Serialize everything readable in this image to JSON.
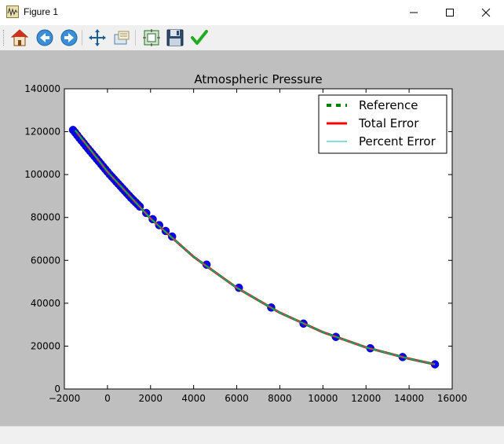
{
  "window": {
    "title": "Figure 1"
  },
  "toolbar": {
    "buttons": [
      "home-icon",
      "back-icon",
      "forward-icon",
      "pan-icon",
      "zoom-icon",
      "subplots-icon",
      "save-icon",
      "edit-icon"
    ]
  },
  "colors": {
    "figure_bg": "#bfbfbf",
    "marker": "#0000ff",
    "reference": "#008000",
    "total_error": "#ff0000",
    "percent_error": "#00bfbf"
  },
  "chart_data": {
    "type": "line",
    "title": "Atmospheric Pressure",
    "xlabel": "",
    "ylabel": "",
    "xlim": [
      -2000,
      16000
    ],
    "ylim": [
      0,
      140000
    ],
    "xticks": [
      "−2000",
      "0",
      "2000",
      "4000",
      "6000",
      "8000",
      "10000",
      "12000",
      "14000",
      "16000"
    ],
    "yticks": [
      "0",
      "20000",
      "40000",
      "60000",
      "80000",
      "100000",
      "120000",
      "140000"
    ],
    "legend_position": "top-right",
    "legend": [
      "Reference",
      "Total Error",
      "Percent Error"
    ],
    "series": [
      {
        "name": "Reference",
        "style": "dashed",
        "color": "#008000",
        "x": [
          -1500,
          0,
          2000,
          4000,
          6000,
          8000,
          10000,
          12000,
          14000,
          15200
        ],
        "y": [
          120700,
          101300,
          79500,
          61600,
          47200,
          35600,
          26500,
          19400,
          14100,
          11500
        ]
      },
      {
        "name": "Total Error",
        "style": "solid",
        "color": "#ff0000",
        "x": [
          -1500,
          0,
          2000,
          4000,
          6000,
          8000,
          10000,
          12000,
          14000,
          15200
        ],
        "y": [
          120700,
          101300,
          79500,
          61600,
          47200,
          35600,
          26500,
          19400,
          14100,
          11500
        ]
      },
      {
        "name": "Percent Error",
        "style": "solid",
        "color": "#00bfbf",
        "x": [
          -1500,
          0,
          2000,
          4000,
          6000,
          8000,
          10000,
          12000,
          14000,
          15200
        ],
        "y": [
          120700,
          101300,
          79500,
          61600,
          47200,
          35600,
          26500,
          19400,
          14100,
          11500
        ]
      }
    ],
    "markers": {
      "color": "#0000ff",
      "x": [
        -1600,
        -1500,
        -1400,
        -1300,
        -1200,
        -1100,
        -1000,
        -900,
        -800,
        -700,
        -600,
        -500,
        -400,
        -300,
        -200,
        -100,
        0,
        100,
        200,
        300,
        400,
        500,
        600,
        700,
        800,
        900,
        1000,
        1100,
        1200,
        1300,
        1400,
        1500,
        1800,
        2100,
        2400,
        2700,
        3000,
        4600,
        6100,
        7600,
        9100,
        10600,
        12200,
        13700,
        15200
      ],
      "y": [
        120800,
        119600,
        118300,
        117000,
        115800,
        114600,
        113300,
        112100,
        110900,
        109700,
        108500,
        107300,
        106100,
        104900,
        103700,
        102500,
        101300,
        100100,
        99000,
        97900,
        96800,
        95700,
        94600,
        93500,
        92400,
        91300,
        90200,
        89100,
        88100,
        87100,
        86100,
        85100,
        82100,
        79200,
        76400,
        73700,
        71100,
        58000,
        47200,
        38000,
        30500,
        24300,
        19000,
        14900,
        11500
      ]
    }
  }
}
